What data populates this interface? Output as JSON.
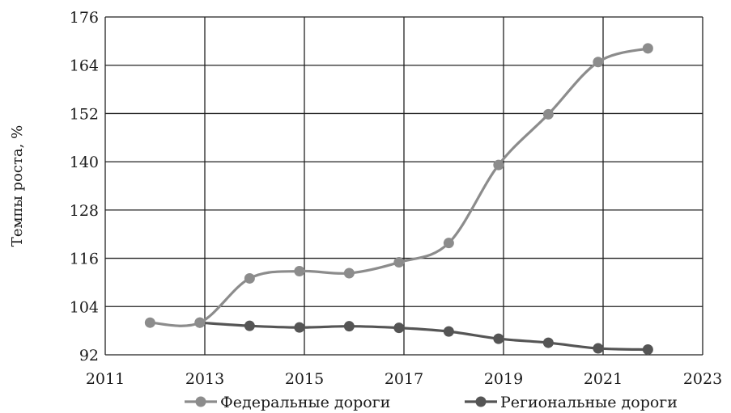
{
  "chart_data": {
    "type": "line",
    "ylabel": "Темпы роста, %",
    "xlim": [
      2011,
      2023
    ],
    "ylim": [
      92,
      176
    ],
    "x_ticks": [
      "2011",
      "2013",
      "2015",
      "2017",
      "2019",
      "2021",
      "2023"
    ],
    "y_ticks": [
      "92",
      "104",
      "116",
      "128",
      "140",
      "152",
      "164",
      "176"
    ],
    "grid": true,
    "legend_position": "bottom",
    "series": [
      {
        "name": "Федеральные дороги",
        "color": "#8c8c8c",
        "x": [
          2011.9,
          2012.9,
          2013.9,
          2014.9,
          2015.9,
          2016.9,
          2017.9,
          2018.9,
          2019.9,
          2020.9,
          2021.9
        ],
        "values": [
          100,
          100,
          111,
          112.8,
          112.3,
          115,
          119.8,
          139.2,
          151.8,
          164.8,
          168.2
        ]
      },
      {
        "name": "Региональные дороги",
        "color": "#555555",
        "x": [
          2012.9,
          2013.9,
          2014.9,
          2015.9,
          2016.9,
          2017.9,
          2018.9,
          2019.9,
          2020.9,
          2021.9
        ],
        "values": [
          100,
          99.2,
          98.8,
          99.1,
          98.7,
          97.8,
          96,
          95,
          93.6,
          93.3
        ]
      }
    ]
  }
}
